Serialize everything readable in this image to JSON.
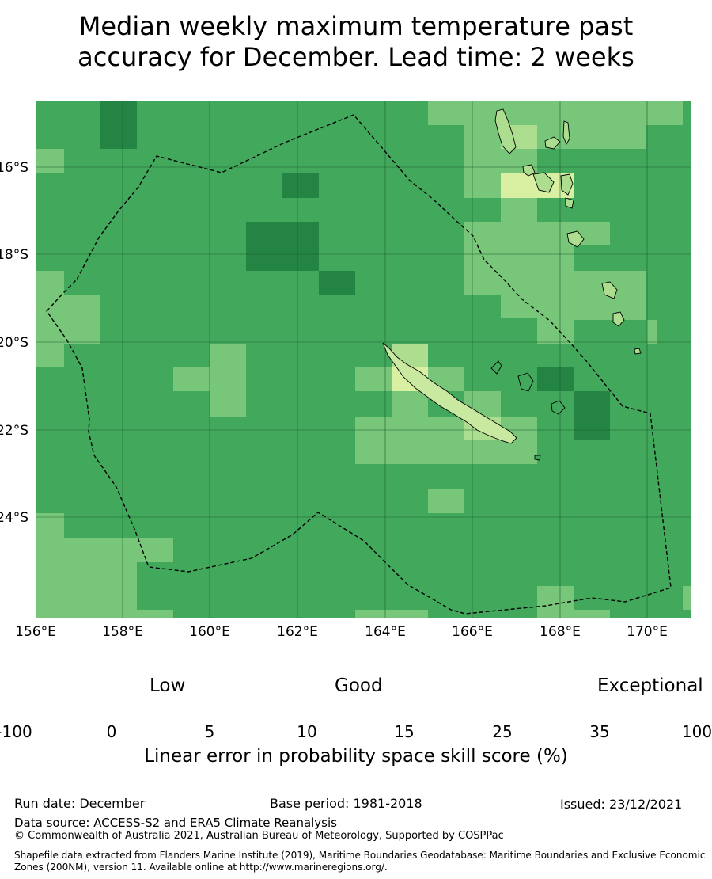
{
  "title_line1": "Median weekly maximum temperature past",
  "title_line2": "accuracy for December. Lead time: 2 weeks",
  "map": {
    "lon_ticks": [
      "156°E",
      "158°E",
      "160°E",
      "162°E",
      "164°E",
      "166°E",
      "168°E",
      "170°E"
    ],
    "lat_ticks": [
      "16°S",
      "18°S",
      "20°S",
      "22°S",
      "24°S"
    ],
    "skill_colors": {
      "base": "#41a85c",
      "high": "#238443",
      "medium": "#78c679",
      "low": "#addd8e",
      "lowest": "#d9f0a3"
    },
    "boundary_style": "dashed black line (EEZ 200NM)",
    "islands": [
      "New Caledonia",
      "Loyalty Islands",
      "Vanuatu"
    ]
  },
  "colorbar": {
    "categories": [
      "Low",
      "Good",
      "Exceptional"
    ],
    "ticks": [
      "-100",
      "0",
      "5",
      "10",
      "15",
      "25",
      "35",
      "100"
    ],
    "colors": [
      "#ffffff",
      "#ffffcc",
      "#d9f0a3",
      "#addd8e",
      "#78c679",
      "#41ab5d",
      "#238443"
    ],
    "label": "Linear error in probability space skill score (%)"
  },
  "footer": {
    "run_date": "Run date: December",
    "base_period": "Base period: 1981-2018",
    "issued": "Issued: 23/12/2021",
    "data_source": "Data source: ACCESS-S2 and ERA5 Climate Reanalysis",
    "copyright": "© Commonwealth of Australia 2021, Australian Bureau of Meteorology, Supported by COSPPac",
    "shapefile": "Shapefile data extracted from Flanders Marine Institute (2019), Maritime Boundaries Geodatabase: Maritime Boundaries and Exclusive Economic Zones (200NM), version 11. Available online at http://www.marineregions.org/."
  }
}
